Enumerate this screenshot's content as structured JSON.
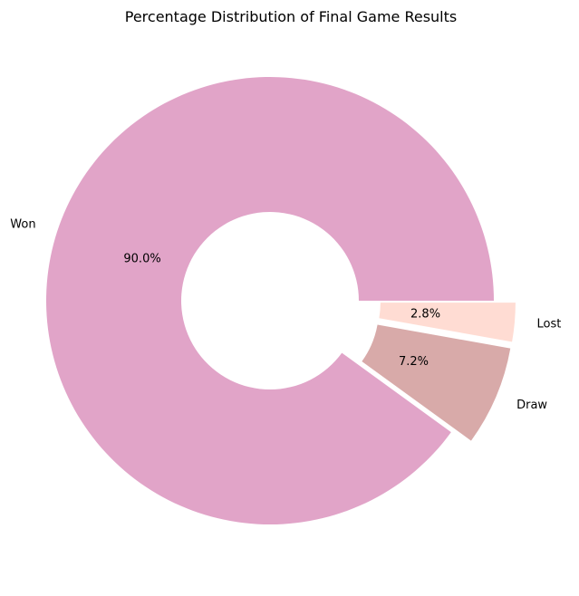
{
  "chart_data": {
    "type": "pie",
    "style": "donut",
    "title": "Percentage Distribution of Final Game Results",
    "categories": [
      "Won",
      "Draw",
      "Lost"
    ],
    "values": [
      90.0,
      7.2,
      2.8
    ],
    "value_labels": [
      "90.0%",
      "7.2%",
      "2.8%"
    ],
    "colors": [
      "#e1a4c8",
      "#d8aaa9",
      "#ffdcd3"
    ],
    "exploded": [
      false,
      true,
      true
    ],
    "start": "0°, counterclockwise",
    "legend": "none"
  }
}
